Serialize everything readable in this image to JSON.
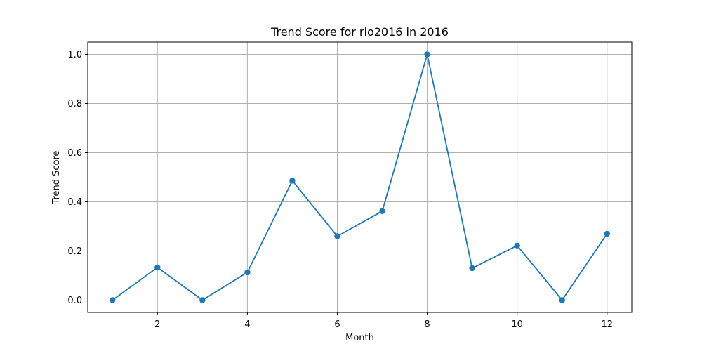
{
  "chart_data": {
    "type": "line",
    "title": "Trend Score for rio2016 in 2016",
    "xlabel": "Month",
    "ylabel": "Trend Score",
    "x": [
      1,
      2,
      3,
      4,
      5,
      6,
      7,
      8,
      9,
      10,
      11,
      12
    ],
    "series": [
      {
        "values": [
          0.0,
          0.133,
          0.0,
          0.113,
          0.486,
          0.26,
          0.362,
          1.0,
          0.13,
          0.222,
          0.0,
          0.27
        ],
        "color": "#1f77b4",
        "marker": "circle"
      }
    ],
    "xlim": [
      0.45,
      12.55
    ],
    "ylim": [
      -0.05,
      1.05
    ],
    "xticks": [
      2,
      4,
      6,
      8,
      10,
      12
    ],
    "xtick_labels": [
      "2",
      "4",
      "6",
      "8",
      "10",
      "12"
    ],
    "yticks": [
      0.0,
      0.2,
      0.4,
      0.6,
      0.8,
      1.0
    ],
    "ytick_labels": [
      "0.0",
      "0.2",
      "0.4",
      "0.6",
      "0.8",
      "1.0"
    ],
    "grid": true,
    "legend": "none"
  }
}
